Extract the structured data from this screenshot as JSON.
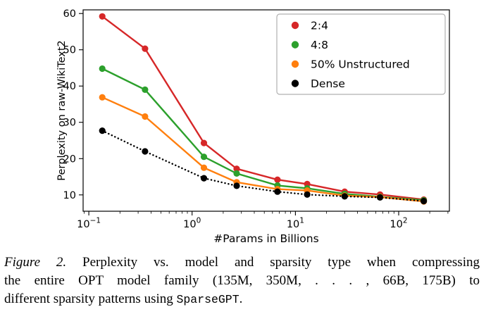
{
  "chart_data": {
    "type": "line",
    "title": "",
    "xlabel": "#Params in Billions",
    "ylabel": "Perplexity on raw-WikiText2",
    "xscale": "log",
    "xlim": [
      0.088,
      310
    ],
    "ylim": [
      5.5,
      61
    ],
    "xticks": [
      0.1,
      1,
      10,
      100
    ],
    "yticks": [
      10,
      20,
      30,
      40,
      50,
      60
    ],
    "grid": false,
    "legend_position": "upper right",
    "x": [
      0.135,
      0.35,
      1.3,
      2.7,
      6.7,
      13,
      30,
      66,
      175
    ],
    "series": [
      {
        "name": "2:4",
        "color": "#d62728",
        "style": "solid",
        "values": [
          59.2,
          50.3,
          24.3,
          17.2,
          14.2,
          13.0,
          10.9,
          10.1,
          8.7
        ]
      },
      {
        "name": "4:8",
        "color": "#2ca02c",
        "style": "solid",
        "values": [
          44.8,
          39.0,
          20.5,
          15.9,
          12.6,
          11.8,
          10.3,
          9.5,
          8.5
        ]
      },
      {
        "name": "50% Unstructured",
        "color": "#ff7f0e",
        "style": "solid",
        "values": [
          36.9,
          31.6,
          17.5,
          13.5,
          11.6,
          11.2,
          9.8,
          9.4,
          8.2
        ]
      },
      {
        "name": "Dense",
        "color": "#000000",
        "style": "dotted",
        "values": [
          27.7,
          22.0,
          14.6,
          12.5,
          10.9,
          10.1,
          9.6,
          9.3,
          8.3
        ]
      }
    ]
  },
  "caption": {
    "figure_label": "Figure 2.",
    "line1_rest": " Perplexity vs. model and sparsity type when compressing",
    "line2": "the entire OPT model family (135M, 350M, . . . , 66B, 175B) to",
    "line3_before": "different sparsity patterns using ",
    "code_text": "SparseGPT",
    "line3_after": "."
  }
}
